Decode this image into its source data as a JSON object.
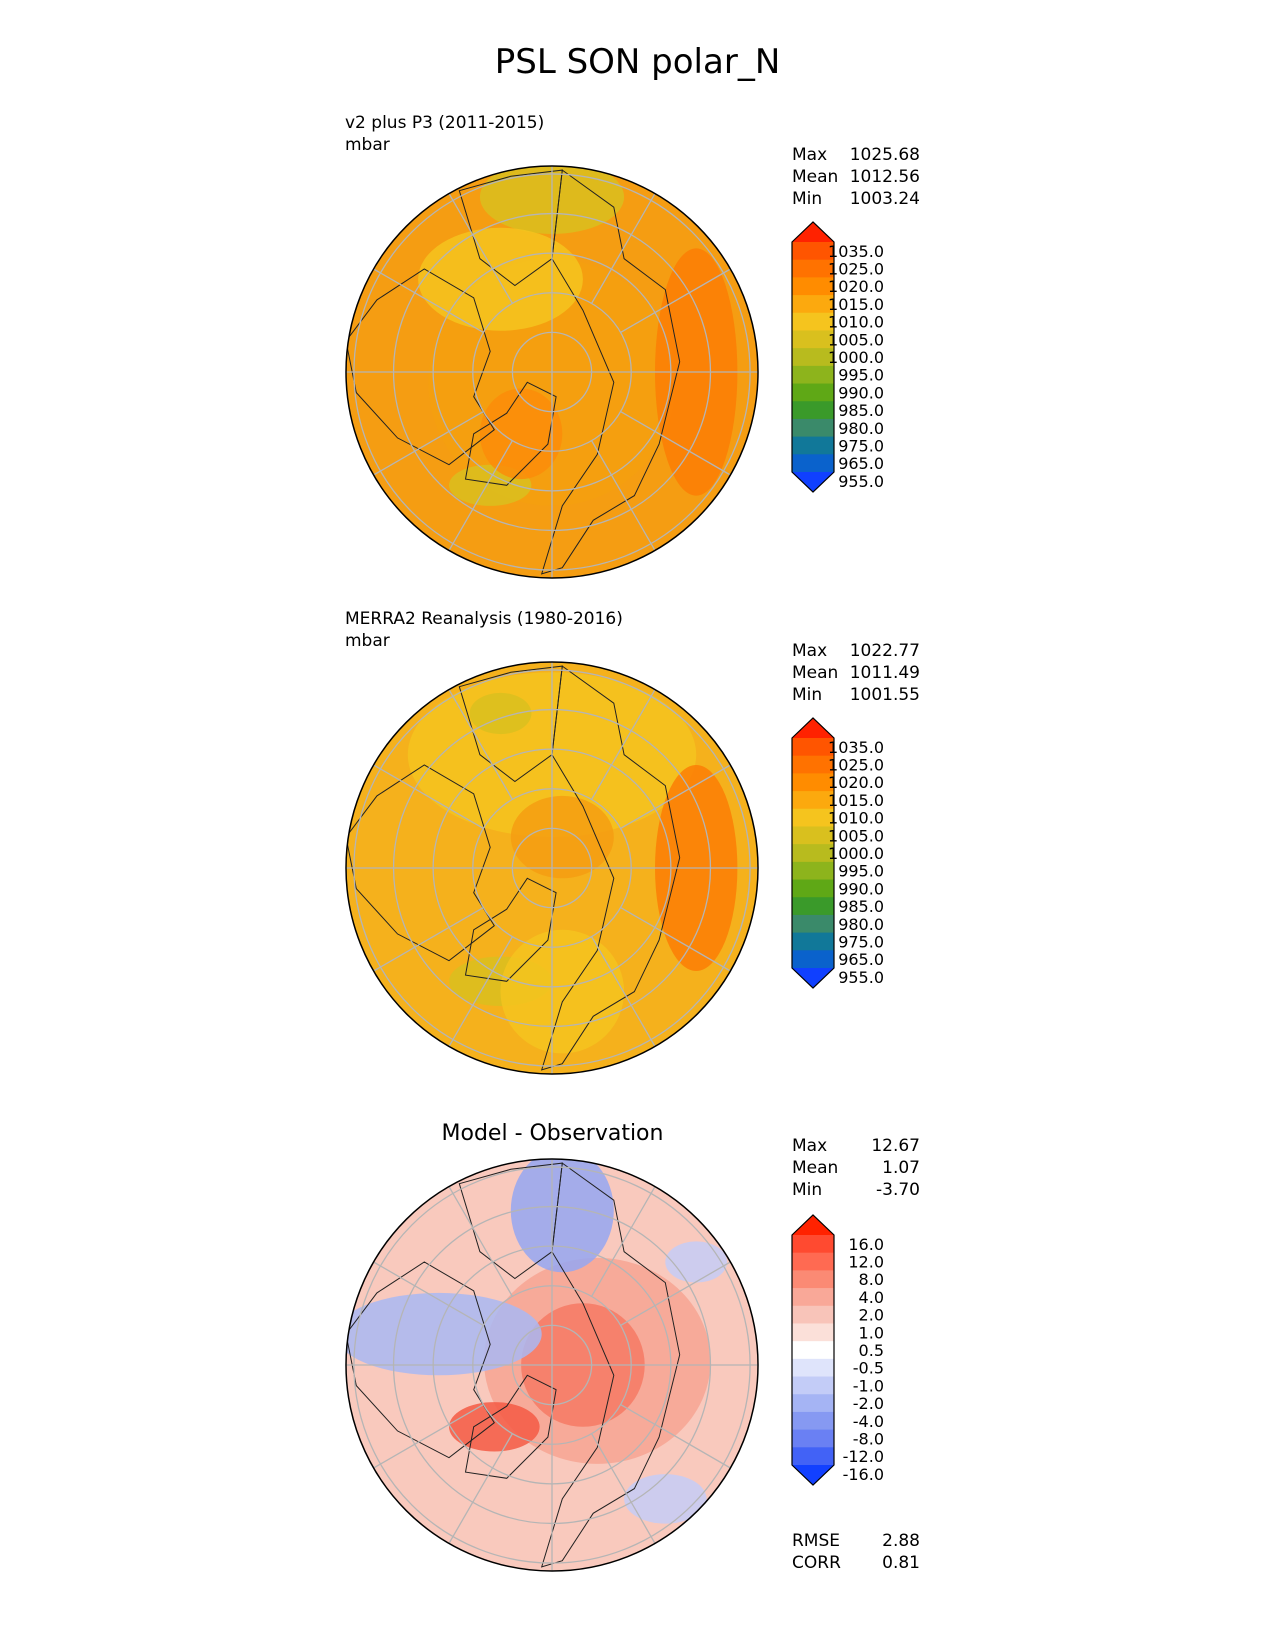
{
  "title": "PSL SON polar_N",
  "panels": [
    {
      "id": "test",
      "label": "v2 plus P3 (2011-2015)",
      "units": "mbar",
      "stats": [
        {
          "label": "Max",
          "value": "1025.68"
        },
        {
          "label": "Mean",
          "value": "1012.56"
        },
        {
          "label": "Min",
          "value": "1003.24"
        }
      ],
      "colorbar": {
        "ticks": [
          "1035.0",
          "1025.0",
          "1020.0",
          "1015.0",
          "1010.0",
          "1005.0",
          "1000.0",
          "995.0",
          "990.0",
          "985.0",
          "980.0",
          "975.0",
          "965.0",
          "955.0"
        ],
        "colors": [
          "#ff2200",
          "#ff5500",
          "#ff7200",
          "#ff8c00",
          "#fca90e",
          "#f5c41e",
          "#d9c01e",
          "#b8bb1e",
          "#8db41c",
          "#5fa816",
          "#3a9a2a",
          "#3a8a6a",
          "#117899",
          "#0a62cc",
          "#1040ff"
        ]
      },
      "map_fill": "#f59d12"
    },
    {
      "id": "ref",
      "label": "MERRA2 Reanalysis (1980-2016)",
      "units": "mbar",
      "stats": [
        {
          "label": "Max",
          "value": "1022.77"
        },
        {
          "label": "Mean",
          "value": "1011.49"
        },
        {
          "label": "Min",
          "value": "1001.55"
        }
      ],
      "colorbar": {
        "ticks": [
          "1035.0",
          "1025.0",
          "1020.0",
          "1015.0",
          "1010.0",
          "1005.0",
          "1000.0",
          "995.0",
          "990.0",
          "985.0",
          "980.0",
          "975.0",
          "965.0",
          "955.0"
        ],
        "colors": [
          "#ff2200",
          "#ff5500",
          "#ff7200",
          "#ff8c00",
          "#fca90e",
          "#f5c41e",
          "#d9c01e",
          "#b8bb1e",
          "#8db41c",
          "#5fa816",
          "#3a9a2a",
          "#3a8a6a",
          "#117899",
          "#0a62cc",
          "#1040ff"
        ]
      },
      "map_fill": "#f5b11c"
    },
    {
      "id": "diff",
      "title": "Model - Observation",
      "stats": [
        {
          "label": "Max",
          "value": "12.67"
        },
        {
          "label": "Mean",
          "value": "1.07"
        },
        {
          "label": "Min",
          "value": "-3.70"
        }
      ],
      "colorbar": {
        "ticks": [
          "16.0",
          "12.0",
          "8.0",
          "4.0",
          "2.0",
          "1.0",
          "0.5",
          "-0.5",
          "-1.0",
          "-2.0",
          "-4.0",
          "-8.0",
          "-12.0",
          "-16.0"
        ],
        "colors": [
          "#ff2200",
          "#ff4a30",
          "#ff6a52",
          "#fb8a74",
          "#f9a898",
          "#f8c4b9",
          "#fbe0d9",
          "#ffffff",
          "#dfe4fb",
          "#c3ccf7",
          "#a5b4f4",
          "#8699f2",
          "#6a80f3",
          "#4262f6",
          "#1240ff"
        ]
      },
      "metrics": [
        {
          "label": "RMSE",
          "value": "2.88"
        },
        {
          "label": "CORR",
          "value": "0.81"
        }
      ],
      "map_fill": "#f9c9bd"
    }
  ],
  "colors": {
    "text": "#000000",
    "grid": "#b5b5b5",
    "coast": "#222222"
  }
}
